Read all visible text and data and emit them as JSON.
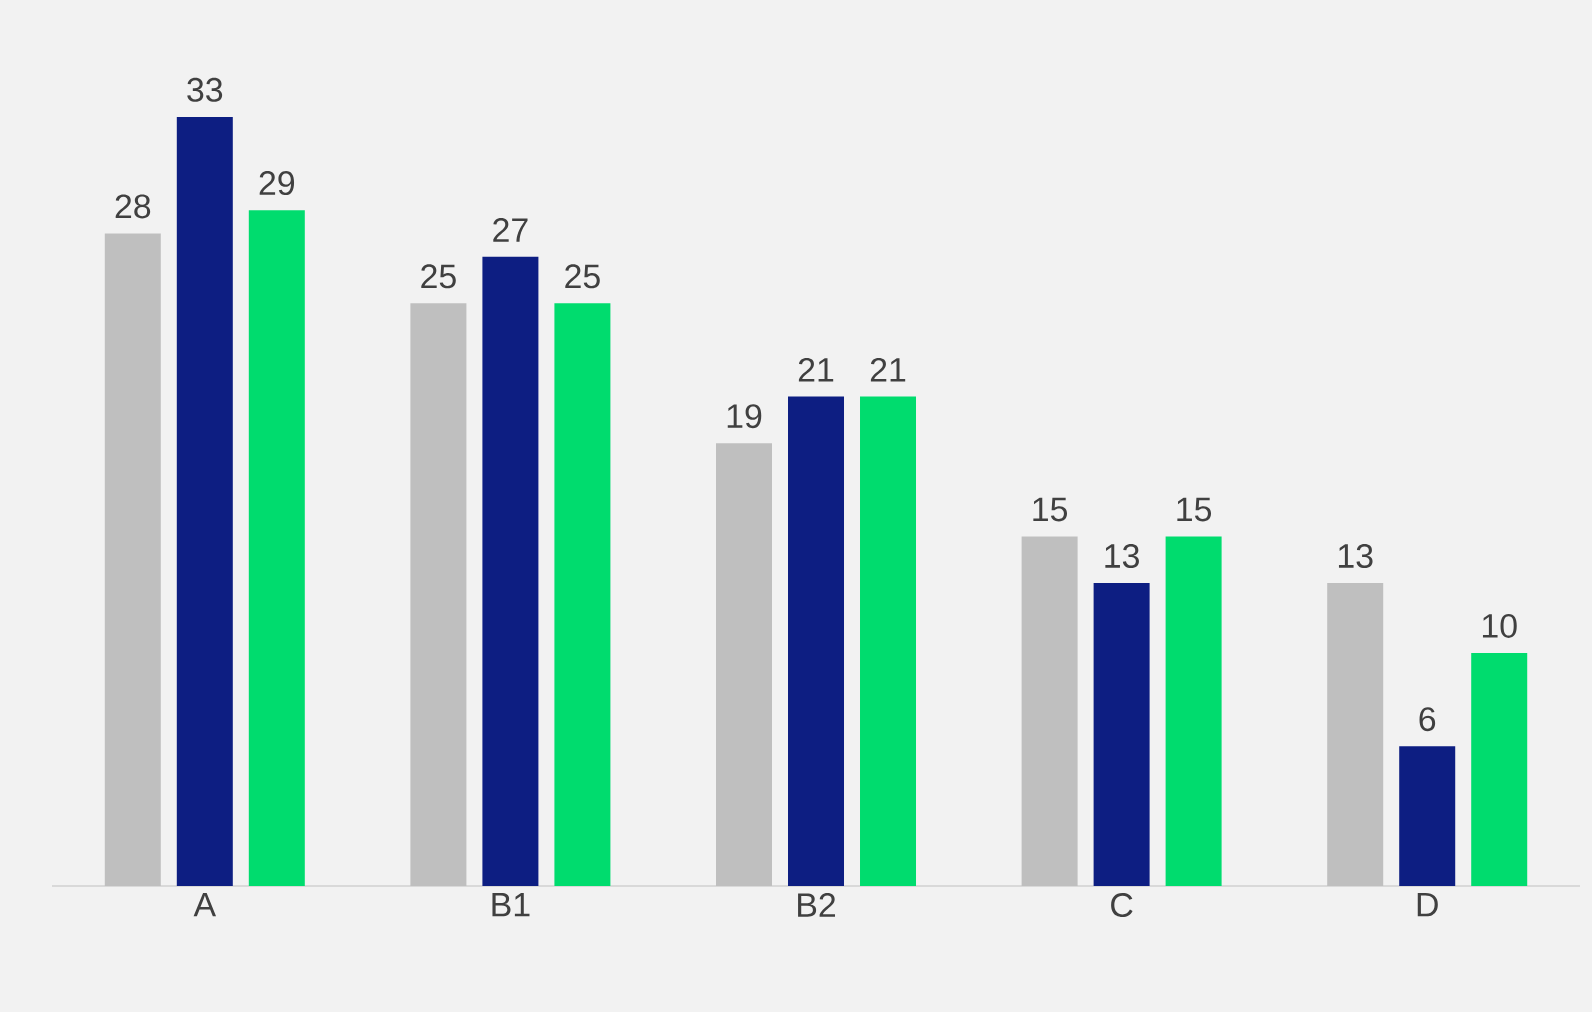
{
  "chart_data": {
    "type": "bar",
    "categories": [
      "A",
      "B1",
      "B2",
      "C",
      "D"
    ],
    "series": [
      {
        "color": "#bfbfbf",
        "values": [
          28,
          25,
          19,
          15,
          13
        ]
      },
      {
        "color": "#0d1e82",
        "values": [
          33,
          27,
          21,
          13,
          6
        ]
      },
      {
        "color": "#00dc6e",
        "values": [
          29,
          25,
          21,
          15,
          10
        ]
      }
    ],
    "data_labels": true
  }
}
